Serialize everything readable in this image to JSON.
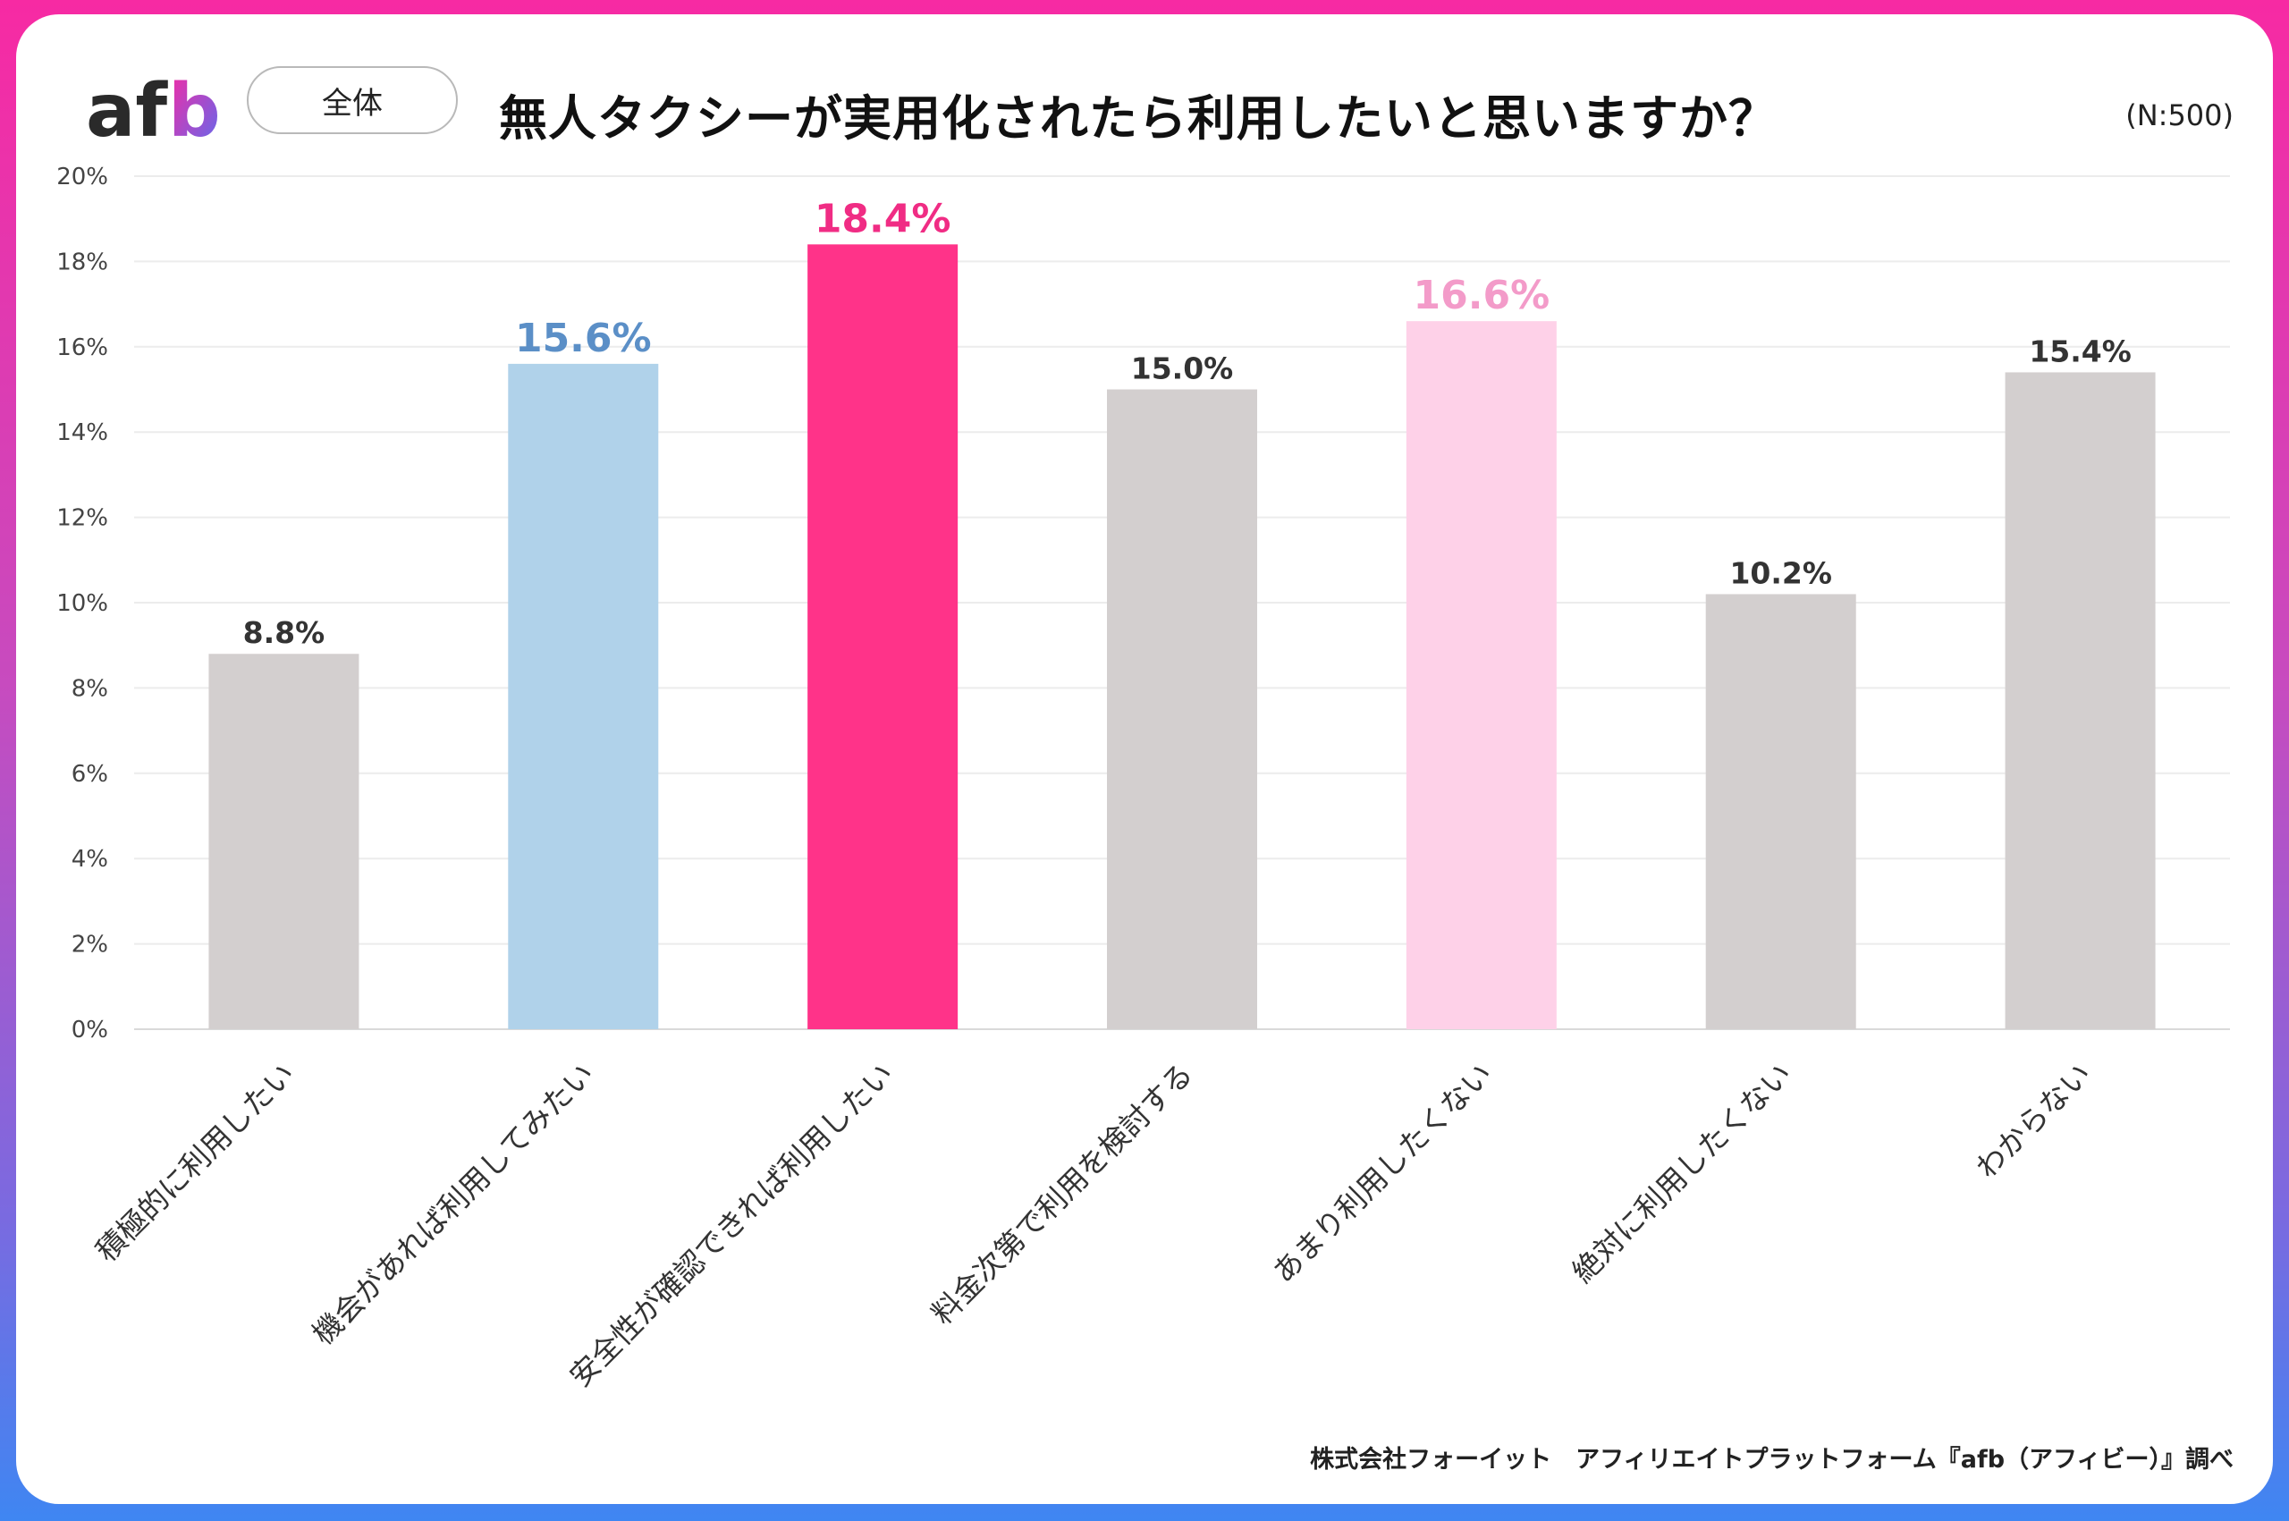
{
  "header": {
    "badge_label": "全体",
    "title": "無人タクシーが実用化されたら利用したいと思いますか？",
    "sample_size": "(N:500)"
  },
  "footer": {
    "credit": "株式会社フォーイット　アフィリエイトプラットフォーム『afb（アフィビー）』調べ"
  },
  "colors": {
    "grey": "#d3cfcf",
    "blue": "#b0d2ea",
    "blue_label": "#5b8fc7",
    "pink": "#ff3389",
    "pink_label": "#f02c84",
    "light_pink": "#fed1e8",
    "light_pink_label": "#f39bc9",
    "dark_label": "#333333"
  },
  "chart_data": {
    "type": "bar",
    "categories": [
      "積極的に利用したい",
      "機会があれば利用してみたい",
      "安全性が確認できれば利用したい",
      "料金次第で利用を検討する",
      "あまり利用したくない",
      "絶対に利用したくない",
      "わからない"
    ],
    "values": [
      8.8,
      15.6,
      18.4,
      15.0,
      16.6,
      10.2,
      15.4
    ],
    "value_labels": [
      "8.8%",
      "15.6%",
      "18.4%",
      "15.0%",
      "16.6%",
      "10.2%",
      "15.4%"
    ],
    "bar_colors": [
      "grey",
      "blue",
      "pink",
      "grey",
      "light_pink",
      "grey",
      "grey"
    ],
    "label_colors": [
      "dark_label",
      "blue_label",
      "pink_label",
      "dark_label",
      "light_pink_label",
      "dark_label",
      "dark_label"
    ],
    "ylim": [
      0,
      20
    ],
    "yticks": [
      "0%",
      "2%",
      "4%",
      "6%",
      "8%",
      "10%",
      "12%",
      "14%",
      "16%",
      "18%",
      "20%"
    ],
    "grid": true,
    "legend": "none"
  }
}
